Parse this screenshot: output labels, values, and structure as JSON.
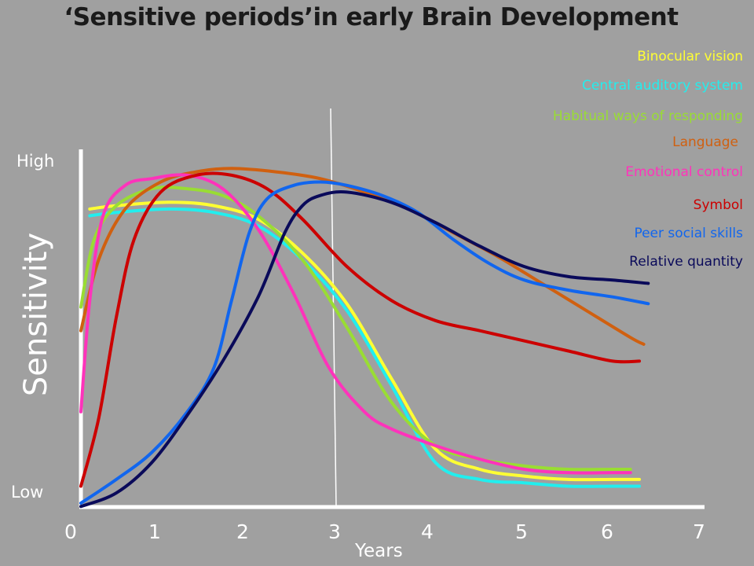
{
  "chart_data": {
    "type": "line",
    "title": "‘Sensitive periods’in early Brain Development",
    "xlabel": "Years",
    "ylabel": "Sensitivity",
    "y_low_label": "Low",
    "y_high_label": "High",
    "xlim": [
      0,
      7
    ],
    "x_ticks": [
      "0",
      "1",
      "2",
      "3",
      "4",
      "5",
      "6",
      "7"
    ],
    "grid": false,
    "legend_placement": "top-right",
    "series": [
      {
        "name": "Binocular vision",
        "color": "#ffff33",
        "x": [
          0.1,
          0.4,
          1.0,
          1.5,
          2.0,
          2.5,
          3.0,
          3.5,
          4.0,
          4.5,
          5.0,
          5.5,
          6.0,
          6.3
        ],
        "y": [
          0.87,
          0.88,
          0.89,
          0.88,
          0.84,
          0.74,
          0.59,
          0.37,
          0.16,
          0.1,
          0.08,
          0.07,
          0.07,
          0.07
        ]
      },
      {
        "name": "Central auditory system",
        "color": "#22eeee",
        "x": [
          0.1,
          0.4,
          1.0,
          1.5,
          2.0,
          2.5,
          3.0,
          3.5,
          4.0,
          4.5,
          5.0,
          5.5,
          6.0,
          6.3
        ],
        "y": [
          0.85,
          0.86,
          0.87,
          0.86,
          0.82,
          0.72,
          0.57,
          0.35,
          0.12,
          0.07,
          0.06,
          0.05,
          0.05,
          0.05
        ]
      },
      {
        "name": "Habitual ways of responding",
        "color": "#99dd33",
        "x": [
          0.0,
          0.15,
          0.4,
          0.8,
          1.2,
          1.6,
          2.0,
          2.5,
          3.0,
          3.5,
          4.0,
          4.5,
          5.0,
          5.5,
          6.0,
          6.2
        ],
        "y": [
          0.58,
          0.78,
          0.88,
          0.93,
          0.93,
          0.91,
          0.85,
          0.72,
          0.52,
          0.3,
          0.17,
          0.13,
          0.11,
          0.1,
          0.1,
          0.1
        ]
      },
      {
        "name": "Language",
        "color": "#d06010",
        "x": [
          0.0,
          0.2,
          0.5,
          0.9,
          1.3,
          1.7,
          2.2,
          2.7,
          3.2,
          3.7,
          4.2,
          4.7,
          5.2,
          5.7,
          6.2,
          6.35
        ],
        "y": [
          0.51,
          0.72,
          0.87,
          0.95,
          0.98,
          0.99,
          0.98,
          0.96,
          0.92,
          0.87,
          0.8,
          0.73,
          0.65,
          0.57,
          0.49,
          0.47
        ]
      },
      {
        "name": "Emotional control",
        "color": "#ff33bb",
        "x": [
          0.0,
          0.1,
          0.25,
          0.5,
          0.8,
          1.2,
          1.6,
          2.0,
          2.4,
          2.8,
          3.2,
          3.5,
          4.0,
          4.5,
          5.0,
          5.5,
          6.0,
          6.2
        ],
        "y": [
          0.27,
          0.6,
          0.85,
          0.94,
          0.96,
          0.97,
          0.93,
          0.81,
          0.62,
          0.4,
          0.27,
          0.22,
          0.17,
          0.13,
          0.1,
          0.09,
          0.09,
          0.09
        ]
      },
      {
        "name": "Symbol",
        "color": "#cc0000",
        "x": [
          0.0,
          0.2,
          0.4,
          0.6,
          0.9,
          1.3,
          1.7,
          2.1,
          2.5,
          3.0,
          3.5,
          4.0,
          4.5,
          5.0,
          5.5,
          6.0,
          6.3
        ],
        "y": [
          0.05,
          0.25,
          0.55,
          0.78,
          0.92,
          0.97,
          0.97,
          0.93,
          0.84,
          0.7,
          0.6,
          0.54,
          0.51,
          0.48,
          0.45,
          0.42,
          0.42
        ]
      },
      {
        "name": "Peer social skills",
        "color": "#1166ee",
        "x": [
          0.0,
          0.4,
          0.8,
          1.2,
          1.5,
          1.7,
          1.9,
          2.1,
          2.4,
          2.7,
          3.0,
          3.4,
          3.8,
          4.2,
          4.6,
          5.0,
          5.5,
          6.0,
          6.4
        ],
        "y": [
          0.0,
          0.07,
          0.15,
          0.27,
          0.4,
          0.6,
          0.8,
          0.9,
          0.94,
          0.95,
          0.94,
          0.91,
          0.86,
          0.78,
          0.71,
          0.66,
          0.63,
          0.61,
          0.59
        ]
      },
      {
        "name": "Relative quantity",
        "color": "#0a0a5a",
        "x": [
          0.0,
          0.4,
          0.8,
          1.2,
          1.6,
          2.0,
          2.3,
          2.5,
          2.7,
          3.0,
          3.5,
          4.0,
          4.5,
          5.0,
          5.5,
          6.0,
          6.4
        ],
        "y": [
          -0.01,
          0.03,
          0.12,
          0.26,
          0.42,
          0.61,
          0.8,
          0.88,
          0.91,
          0.92,
          0.89,
          0.83,
          0.76,
          0.7,
          0.67,
          0.66,
          0.65
        ]
      }
    ]
  }
}
